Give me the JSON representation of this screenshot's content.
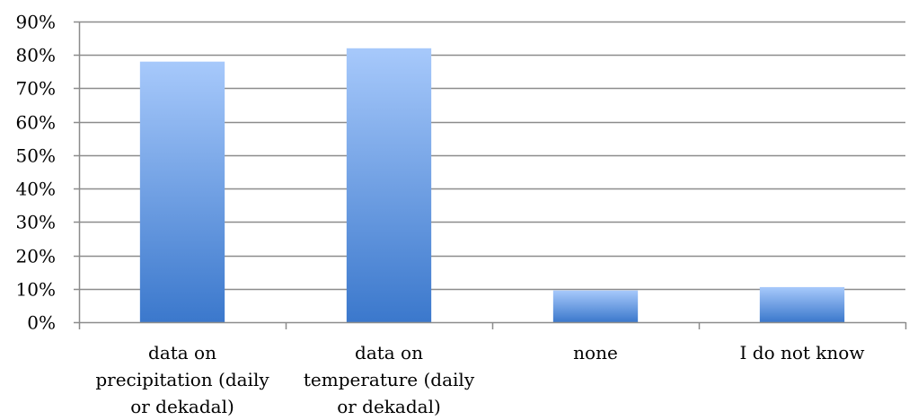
{
  "chart_data": {
    "type": "bar",
    "title": "",
    "xlabel": "",
    "ylabel": "",
    "ylim": [
      0,
      90
    ],
    "y_ticks": [
      "0%",
      "10%",
      "20%",
      "30%",
      "40%",
      "50%",
      "60%",
      "70%",
      "80%",
      "90%"
    ],
    "y_tick_values": [
      0,
      10,
      20,
      30,
      40,
      50,
      60,
      70,
      80,
      90
    ],
    "categories": [
      [
        "data on",
        "precipitation (daily",
        "or dekadal)"
      ],
      [
        "data on",
        "temperature (daily",
        "or dekadal)"
      ],
      [
        "none"
      ],
      [
        "I do not know"
      ]
    ],
    "values": [
      78,
      82,
      9.5,
      10.5
    ],
    "grid": true,
    "legend": "none",
    "colors": {
      "bar_top": "#a7c9fb",
      "bar_bottom": "#3b78cc",
      "grid": "#8c8c8c",
      "axis": "#8c8c8c"
    }
  }
}
